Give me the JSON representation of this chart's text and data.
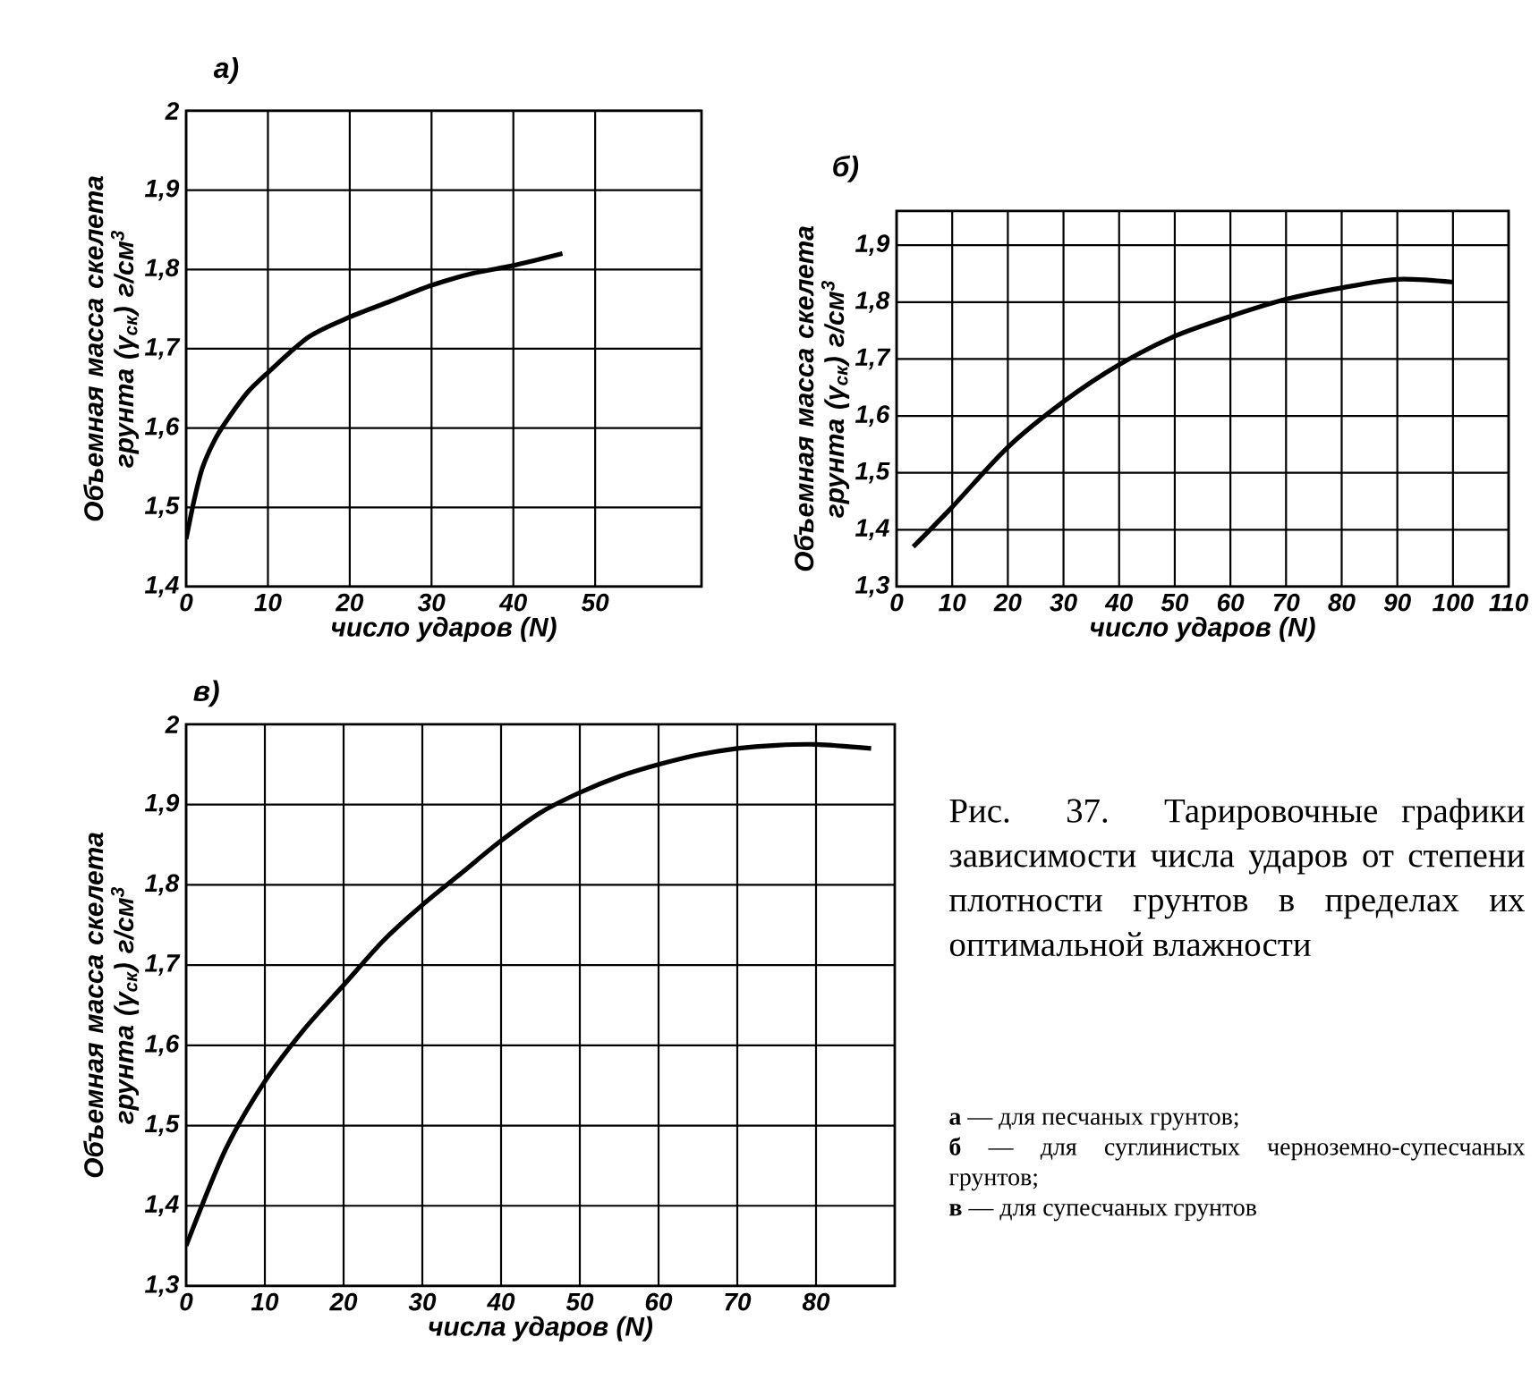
{
  "chart_data": [
    {
      "type": "line",
      "title": "а)",
      "xlabel": "число ударов (N)",
      "ylabel": "Объемная масса скелета грунта (γ$_{ск}$) г/см$^{3}$",
      "xlim": [
        0,
        63
      ],
      "ylim": [
        1.4,
        2
      ],
      "xticks": [
        0,
        10,
        20,
        30,
        40,
        50
      ],
      "yticks": [
        {
          "value": 1.4,
          "label": "1,4"
        },
        {
          "value": 1.5,
          "label": "1,5"
        },
        {
          "value": 1.6,
          "label": "1,6"
        },
        {
          "value": 1.7,
          "label": "1,7"
        },
        {
          "value": 1.8,
          "label": "1,8"
        },
        {
          "value": 1.9,
          "label": "1,9"
        },
        2
      ],
      "grid": true,
      "series": [
        {
          "color": "#000000",
          "x": [
            0,
            1,
            2,
            3.5,
            5,
            7.5,
            10,
            15,
            20,
            25,
            30,
            35,
            40,
            46
          ],
          "values": [
            1.46,
            1.51,
            1.55,
            1.585,
            1.61,
            1.645,
            1.67,
            1.715,
            1.74,
            1.76,
            1.78,
            1.795,
            1.805,
            1.82
          ]
        }
      ]
    },
    {
      "type": "line",
      "title": "б)",
      "xlabel": "число ударов (N)",
      "ylabel": "Объемная масса скелета грунта (γ$_{ск}$) г/см$^{3}$",
      "xlim": [
        0,
        110
      ],
      "ylim": [
        1.3,
        1.96
      ],
      "xticks": [
        0,
        10,
        20,
        30,
        40,
        50,
        60,
        70,
        80,
        90,
        100,
        110
      ],
      "yticks": [
        {
          "value": 1.3,
          "label": "1,3"
        },
        {
          "value": 1.4,
          "label": "1,4"
        },
        {
          "value": 1.5,
          "label": "1,5"
        },
        {
          "value": 1.6,
          "label": "1,6"
        },
        {
          "value": 1.7,
          "label": "1,7"
        },
        {
          "value": 1.8,
          "label": "1,8"
        },
        {
          "value": 1.9,
          "label": "1,9"
        }
      ],
      "grid": true,
      "series": [
        {
          "color": "#000000",
          "x": [
            3,
            10,
            20,
            30,
            40,
            50,
            60,
            70,
            80,
            90,
            100
          ],
          "values": [
            1.37,
            1.44,
            1.545,
            1.625,
            1.69,
            1.74,
            1.775,
            1.805,
            1.825,
            1.84,
            1.835
          ]
        }
      ]
    },
    {
      "type": "line",
      "title": "в)",
      "xlabel": "числа ударов (N)",
      "ylabel": "Объемная масса скелета грунта (γ$_{ск}$) г/см$^{3}$",
      "xlim": [
        0,
        90
      ],
      "ylim": [
        1.3,
        2
      ],
      "xticks": [
        0,
        10,
        20,
        30,
        40,
        50,
        60,
        70,
        80
      ],
      "yticks": [
        {
          "value": 1.3,
          "label": "1,3"
        },
        {
          "value": 1.4,
          "label": "1,4"
        },
        {
          "value": 1.5,
          "label": "1,5"
        },
        {
          "value": 1.6,
          "label": "1,6"
        },
        {
          "value": 1.7,
          "label": "1,7"
        },
        {
          "value": 1.8,
          "label": "1,8"
        },
        {
          "value": 1.9,
          "label": "1,9"
        },
        2
      ],
      "grid": true,
      "series": [
        {
          "color": "#000000",
          "x": [
            0,
            5,
            10,
            15,
            20,
            25,
            30,
            35,
            40,
            45,
            50,
            55,
            60,
            65,
            70,
            75,
            80,
            87
          ],
          "values": [
            1.35,
            1.47,
            1.555,
            1.62,
            1.675,
            1.73,
            1.775,
            1.815,
            1.855,
            1.89,
            1.915,
            1.935,
            1.95,
            1.962,
            1.97,
            1.974,
            1.975,
            1.97
          ]
        }
      ]
    },
    {
      "type": "other",
      "title": "Рис. 37. Тарировочные графики зависимости числа ударов от степени плотности грунтов в пределах их оптимальной влажности",
      "annotations": [
        "**а** — для песчаных грунтов;",
        "**б** — для суглинистых черноземно-супесчаных грунтов;",
        "**в** — для супесчаных грунтов"
      ]
    }
  ]
}
